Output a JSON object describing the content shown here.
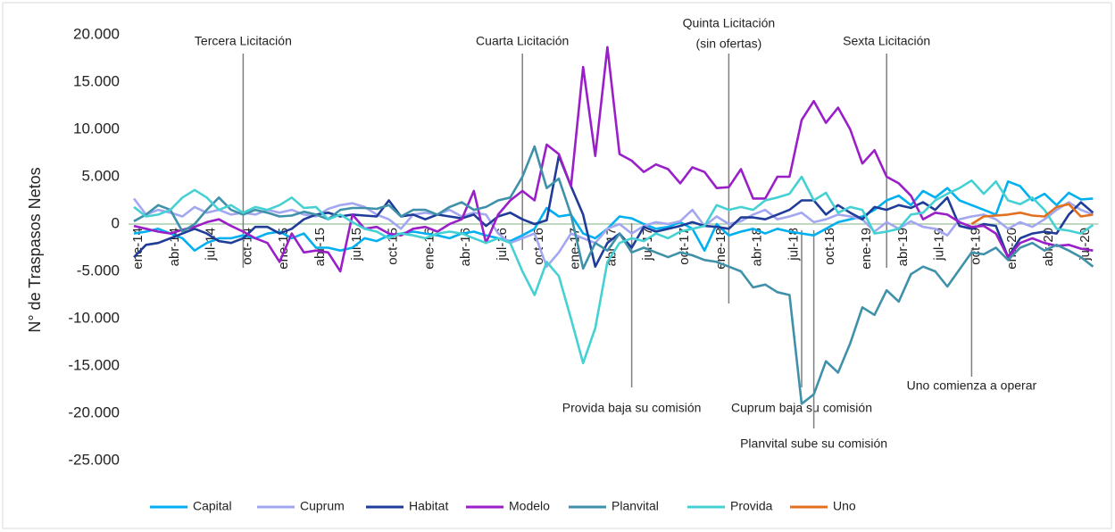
{
  "chart_data": {
    "type": "line",
    "y_label": "N° de Traspasos Netos",
    "ylim": [
      -25000,
      20000
    ],
    "yticks": [
      {
        "value": -25000,
        "label": "-25.000"
      },
      {
        "value": -20000,
        "label": "-20.000"
      },
      {
        "value": -15000,
        "label": "-15.000"
      },
      {
        "value": -10000,
        "label": "-10.000"
      },
      {
        "value": -5000,
        "label": "-5.000"
      },
      {
        "value": 0,
        "label": "0"
      },
      {
        "value": 5000,
        "label": "5.000"
      },
      {
        "value": 10000,
        "label": "10.000"
      },
      {
        "value": 15000,
        "label": "15.000"
      },
      {
        "value": 20000,
        "label": "20.000"
      }
    ],
    "grid": false,
    "legend": "bottom",
    "categories": [
      "ene-14",
      null,
      null,
      "abr-14",
      null,
      null,
      "jul-14",
      null,
      null,
      "oct-14",
      null,
      null,
      "ene-15",
      null,
      null,
      "abr-15",
      null,
      null,
      "jul-15",
      null,
      null,
      "oct-15",
      null,
      null,
      "ene-16",
      null,
      null,
      "abr-16",
      null,
      null,
      "jul-16",
      null,
      null,
      "oct-16",
      null,
      null,
      "ene-17",
      null,
      null,
      "abr-17",
      null,
      null,
      "jul-17",
      null,
      null,
      "oct-17",
      null,
      null,
      "ene-18",
      null,
      null,
      "abr-18",
      null,
      null,
      "jul-18",
      null,
      null,
      "oct-18",
      null,
      null,
      "ene-19",
      null,
      null,
      "abr-19",
      null,
      null,
      "jul-19",
      null,
      null,
      "oct-19",
      null,
      null,
      "ene-20",
      null,
      null,
      "abr-20",
      null,
      null,
      "jul-20",
      null
    ],
    "series": [
      {
        "name": "Capital",
        "color": "#00b0f0",
        "values": [
          -1000,
          -800,
          -500,
          -1000,
          -1500,
          -2800,
          -2000,
          -1500,
          -1500,
          -1200,
          -1500,
          -1000,
          -800,
          -1500,
          -1000,
          -2500,
          -2500,
          -2800,
          -2500,
          -1500,
          -1800,
          -1200,
          -1000,
          -800,
          -1000,
          -1200,
          -1500,
          -1000,
          -800,
          -1200,
          -1500,
          -1800,
          -1200,
          -500,
          1700,
          800,
          1000,
          -1000,
          -1500,
          -500,
          800,
          600,
          0,
          -500,
          -300,
          200,
          -500,
          -2800,
          0,
          -1200,
          -800,
          -500,
          -1000,
          -500,
          -800,
          -1000,
          -1200,
          -500,
          200,
          500,
          800,
          1500,
          2500,
          3000,
          2000,
          3500,
          2800,
          3800,
          2500,
          2000,
          1500,
          1000,
          4500,
          4000,
          2500,
          3200,
          2000,
          3300,
          2600,
          2700
        ]
      },
      {
        "name": "Cuprum",
        "color": "#a3a7f0",
        "values": [
          2700,
          1000,
          1500,
          1200,
          800,
          1800,
          1200,
          1500,
          1000,
          1200,
          1000,
          1500,
          1200,
          1500,
          1000,
          800,
          1600,
          2000,
          2200,
          1800,
          1000,
          500,
          -500,
          1000,
          1200,
          1000,
          1500,
          800,
          1200,
          1000,
          -1000,
          -2000,
          -1500,
          -1000,
          -4500,
          -3000,
          -1000,
          -1500,
          -2000,
          -500,
          0,
          -1000,
          -200,
          200,
          0,
          300,
          1500,
          -200,
          800,
          0,
          300,
          1000,
          1500,
          500,
          800,
          1200,
          200,
          500,
          1000,
          800,
          500,
          -800,
          200,
          -500,
          300,
          -300,
          -500,
          -1200,
          500,
          800,
          1000,
          500,
          -500,
          200,
          -300,
          500,
          1500,
          2300,
          1500,
          1000
        ]
      },
      {
        "name": "Habitat",
        "color": "#1f3c98",
        "values": [
          -3500,
          -2200,
          -2000,
          -1500,
          -1000,
          -500,
          -1000,
          -1800,
          -2000,
          -1500,
          -300,
          -300,
          -1000,
          -500,
          500,
          1000,
          1200,
          800,
          1000,
          900,
          800,
          2500,
          800,
          1000,
          500,
          1000,
          800,
          600,
          1000,
          -200,
          800,
          1200,
          500,
          0,
          400,
          7200,
          4000,
          1000,
          -4500,
          -2000,
          -1000,
          -2500,
          -300,
          -800,
          -500,
          -200,
          200,
          -200,
          -300,
          -500,
          700,
          700,
          500,
          1000,
          1500,
          2500,
          2500,
          1000,
          2000,
          1200,
          500,
          1800,
          1500,
          2000,
          1700,
          2300,
          1500,
          2800,
          -200,
          -500,
          0,
          -200,
          -3500,
          -1500,
          -1000,
          -800,
          -1000,
          1000,
          2300,
          1200
        ]
      },
      {
        "name": "Modelo",
        "color": "#9a1fc8",
        "values": [
          -200,
          -500,
          -800,
          -1000,
          -600,
          -300,
          200,
          500,
          -200,
          -800,
          -1500,
          -2000,
          -4000,
          -1000,
          -3000,
          -2800,
          -3000,
          -5000,
          1000,
          -500,
          -300,
          -1000,
          -1200,
          -500,
          -300,
          -800,
          0,
          500,
          3500,
          -2000,
          1000,
          2500,
          3500,
          2500,
          8400,
          7400,
          4000,
          16600,
          7200,
          18700,
          7400,
          6700,
          5500,
          6300,
          5800,
          4300,
          6000,
          5500,
          3800,
          3900,
          5800,
          2700,
          2700,
          5000,
          5000,
          11000,
          13000,
          10700,
          12300,
          10000,
          6400,
          7800,
          5000,
          4300,
          3000,
          500,
          1200,
          1000,
          200,
          -300,
          -200,
          -1000,
          -3500,
          -2000,
          -1500,
          -2000,
          -2300,
          -2200,
          -2600,
          -2800
        ]
      },
      {
        "name": "Planvital",
        "color": "#3f91aa",
        "values": [
          300,
          1000,
          2000,
          1500,
          -800,
          0,
          1500,
          2800,
          1500,
          1000,
          1500,
          1200,
          800,
          900,
          1300,
          1000,
          500,
          1500,
          1700,
          1700,
          1600,
          2000,
          800,
          1500,
          1500,
          1000,
          1800,
          2300,
          1500,
          1800,
          2500,
          2800,
          5000,
          8200,
          3800,
          4800,
          1000,
          -4700,
          -2000,
          -2800,
          -1000,
          -3000,
          -2500,
          -3000,
          -3500,
          -3000,
          -3300,
          -3800,
          -4000,
          -4500,
          -5000,
          -6700,
          -6400,
          -7200,
          -7500,
          -19000,
          -18000,
          -14500,
          -15700,
          -12600,
          -8800,
          -9600,
          -7000,
          -8200,
          -5300,
          -4500,
          -5000,
          -6600,
          -4800,
          -3000,
          -3200,
          -2500,
          -3800,
          -2500,
          -2000,
          -2800,
          -2200,
          -2800,
          -3500,
          -4500
        ]
      },
      {
        "name": "Provida",
        "color": "#45d1d3",
        "values": [
          1800,
          800,
          1000,
          1500,
          2800,
          3600,
          2800,
          1500,
          2000,
          1200,
          1800,
          1500,
          2000,
          2800,
          1700,
          1800,
          500,
          1000,
          200,
          -500,
          -800,
          -1500,
          -1000,
          -1200,
          -1500,
          -1000,
          -800,
          -1000,
          -1500,
          -2000,
          -1500,
          -2000,
          -5000,
          -7500,
          -4000,
          -5500,
          -10000,
          -14700,
          -11000,
          -4000,
          -2000,
          -1500,
          -1800,
          -1000,
          -1500,
          -800,
          -500,
          -200,
          2000,
          1500,
          1800,
          1500,
          2500,
          2800,
          3200,
          5000,
          2500,
          3300,
          1200,
          1800,
          1500,
          -1000,
          -800,
          -500,
          1000,
          1200,
          2500,
          3200,
          3800,
          4600,
          3200,
          4500,
          2500,
          2100,
          2800,
          1500,
          -500,
          -700,
          -1000,
          -100
        ]
      },
      {
        "name": "Uno",
        "color": "#e3701f",
        "values": [
          null,
          null,
          null,
          null,
          null,
          null,
          null,
          null,
          null,
          null,
          null,
          null,
          null,
          null,
          null,
          null,
          null,
          null,
          null,
          null,
          null,
          null,
          null,
          null,
          null,
          null,
          null,
          null,
          null,
          null,
          null,
          null,
          null,
          null,
          null,
          null,
          null,
          null,
          null,
          null,
          null,
          null,
          null,
          null,
          null,
          null,
          null,
          null,
          null,
          null,
          null,
          null,
          null,
          null,
          null,
          null,
          null,
          null,
          null,
          null,
          null,
          null,
          null,
          null,
          null,
          null,
          null,
          null,
          null,
          0,
          800,
          900,
          1000,
          1200,
          900,
          800,
          1800,
          2100,
          800,
          1000
        ]
      }
    ],
    "annotations": [
      {
        "x": 9,
        "lines": [
          "Tercera Licitación"
        ]
      },
      {
        "x": 32,
        "lines": [
          "Cuarta Licitación"
        ]
      },
      {
        "x": 49,
        "lines": [
          "Quinta Licitación",
          "(sin ofertas)"
        ]
      },
      {
        "x": 62,
        "lines": [
          "Sexta Licitación"
        ]
      },
      {
        "x": 41,
        "lines": [
          "Provida baja su comisión"
        ]
      },
      {
        "x": 55,
        "lines": [
          "Cuprum baja su comisión"
        ]
      },
      {
        "x": 56,
        "lines": [
          "Planvital sube su comisión"
        ]
      },
      {
        "x": 69,
        "lines": [
          "Uno comienza a operar"
        ]
      }
    ]
  }
}
